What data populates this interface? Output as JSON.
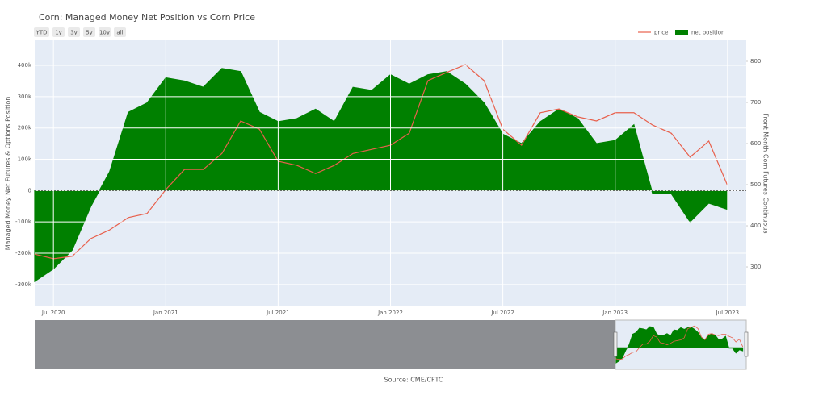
{
  "chart_data": {
    "type": "line",
    "title": "Corn: Managed Money Net Position vs Corn Price",
    "range_buttons": [
      "YTD",
      "1y",
      "3y",
      "5y",
      "10y",
      "all"
    ],
    "ylabel": "Managed Money Net Futures & Options Position",
    "y2label": "Front Month Corn Futures Continuous",
    "source": "Source: CME/CFTC",
    "legend": "top right",
    "grid": true,
    "x": [
      "2020-06",
      "2020-07",
      "2020-08",
      "2020-09",
      "2020-10",
      "2020-11",
      "2020-12",
      "2021-01",
      "2021-02",
      "2021-03",
      "2021-04",
      "2021-05",
      "2021-06",
      "2021-07",
      "2021-08",
      "2021-09",
      "2021-10",
      "2021-11",
      "2021-12",
      "2022-01",
      "2022-02",
      "2022-03",
      "2022-04",
      "2022-05",
      "2022-06",
      "2022-07",
      "2022-08",
      "2022-09",
      "2022-10",
      "2022-11",
      "2022-12",
      "2023-01",
      "2023-02",
      "2023-03",
      "2023-04",
      "2023-05",
      "2023-06",
      "2023-07"
    ],
    "xlim": [
      "2020-06",
      "2023-08"
    ],
    "xticks": [
      {
        "value": "2020-07",
        "label": "Jul 2020"
      },
      {
        "value": "2021-01",
        "label": "Jan 2021"
      },
      {
        "value": "2021-07",
        "label": "Jul 2021"
      },
      {
        "value": "2022-01",
        "label": "Jan 2022"
      },
      {
        "value": "2022-07",
        "label": "Jul 2022"
      },
      {
        "value": "2023-01",
        "label": "Jan 2023"
      },
      {
        "value": "2023-07",
        "label": "Jul 2023"
      }
    ],
    "ylim": [
      -370000,
      480000
    ],
    "yticks": [
      {
        "value": -300000,
        "label": "-300k"
      },
      {
        "value": -200000,
        "label": "-200k"
      },
      {
        "value": -100000,
        "label": "-100k"
      },
      0,
      {
        "value": 100000,
        "label": "100k"
      },
      {
        "value": 200000,
        "label": "200k"
      },
      {
        "value": 300000,
        "label": "300k"
      },
      {
        "value": 400000,
        "label": "400k"
      }
    ],
    "y2lim": [
      204,
      851
    ],
    "y2ticks": [
      300,
      400,
      500,
      600,
      700,
      800
    ],
    "series": [
      {
        "name": "net position",
        "type": "area",
        "color": "#008000",
        "values": [
          -290000,
          -250000,
          -190000,
          -50000,
          60000,
          250000,
          280000,
          360000,
          350000,
          330000,
          390000,
          380000,
          250000,
          220000,
          230000,
          260000,
          220000,
          330000,
          320000,
          370000,
          340000,
          370000,
          380000,
          340000,
          280000,
          180000,
          150000,
          220000,
          260000,
          230000,
          150000,
          160000,
          210000,
          -10000,
          -10000,
          -100000,
          -40000,
          -60000
        ]
      },
      {
        "name": "price",
        "type": "line",
        "axis": "y2",
        "color": "#e8604c",
        "values": [
          331,
          320,
          326,
          369,
          390,
          420,
          430,
          488,
          537,
          537,
          576,
          655,
          635,
          557,
          547,
          527,
          547,
          576,
          586,
          596,
          625,
          753,
          773,
          792,
          753,
          635,
          596,
          675,
          684,
          665,
          655,
          675,
          675,
          645,
          625,
          567,
          606,
          498
        ]
      }
    ]
  }
}
